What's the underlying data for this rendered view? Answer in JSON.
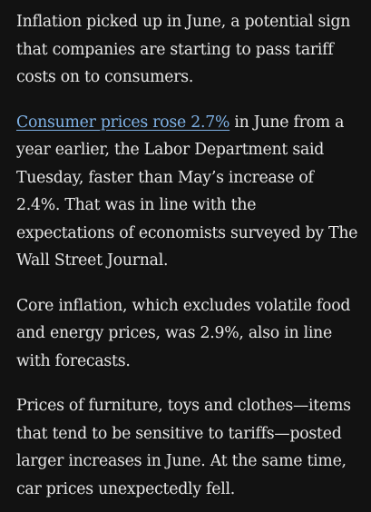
{
  "article": {
    "paragraphs": [
      {
        "text": "Inflation picked up in June, a potential sign that companies are starting to pass tariff costs on to consumers."
      },
      {
        "link_text": "Consumer prices rose 2.7%",
        "text_after_link": " in June from a year earlier, the Labor Department said Tuesday, faster than May’s increase of 2.4%. That was in line with the expectations of economists surveyed by The Wall Street Journal."
      },
      {
        "text": "Core inflation, which excludes volatile food and energy prices, was 2.9%, also in line with forecasts."
      },
      {
        "text": "Prices of furniture, toys and clothes—items that tend to be sensitive to tariffs—posted larger increases in June. At the same time, car prices unexpectedly fell."
      }
    ]
  },
  "colors": {
    "background": "#121212",
    "text": "#e6e6e6",
    "link": "#7fb2e6"
  }
}
